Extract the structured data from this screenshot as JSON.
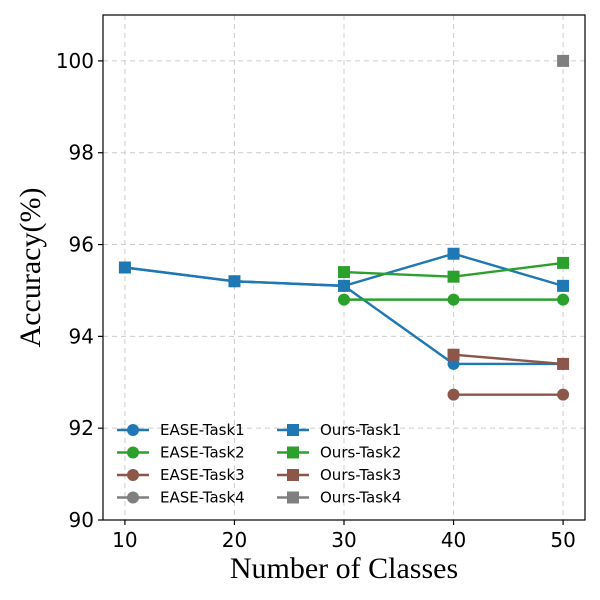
{
  "chart_data": {
    "type": "line",
    "title": "",
    "xlabel": "Number of Classes",
    "ylabel": "Accuracy(%)",
    "xlim": [
      8,
      52
    ],
    "ylim": [
      90,
      101
    ],
    "x_ticks": [
      10,
      20,
      30,
      40,
      50
    ],
    "y_ticks": [
      90,
      92,
      94,
      96,
      98,
      100
    ],
    "grid": true,
    "legend_position": "bottom-left",
    "series": [
      {
        "name": "EASE-Task1",
        "marker": "circle",
        "color": "#1f77b4",
        "x": [
          10,
          20,
          30,
          40,
          50
        ],
        "y": [
          95.5,
          95.2,
          95.1,
          93.4,
          93.4
        ]
      },
      {
        "name": "EASE-Task2",
        "marker": "circle",
        "color": "#2ca02c",
        "x": [
          30,
          40,
          50
        ],
        "y": [
          94.8,
          94.8,
          94.8
        ]
      },
      {
        "name": "EASE-Task3",
        "marker": "circle",
        "color": "#8c564b",
        "x": [
          40,
          50
        ],
        "y": [
          92.73,
          92.73
        ]
      },
      {
        "name": "EASE-Task4",
        "marker": "circle",
        "color": "#7f7f7f",
        "x": [],
        "y": []
      },
      {
        "name": "Ours-Task1",
        "marker": "square",
        "color": "#1f77b4",
        "x": [
          10,
          20,
          30,
          40,
          50
        ],
        "y": [
          95.5,
          95.2,
          95.1,
          95.8,
          95.1
        ]
      },
      {
        "name": "Ours-Task2",
        "marker": "square",
        "color": "#2ca02c",
        "x": [
          30,
          40,
          50
        ],
        "y": [
          95.4,
          95.3,
          95.6
        ]
      },
      {
        "name": "Ours-Task3",
        "marker": "square",
        "color": "#8c564b",
        "x": [
          40,
          50
        ],
        "y": [
          93.6,
          93.4
        ]
      },
      {
        "name": "Ours-Task4",
        "marker": "square",
        "color": "#7f7f7f",
        "x": [
          50
        ],
        "y": [
          100
        ]
      }
    ]
  }
}
